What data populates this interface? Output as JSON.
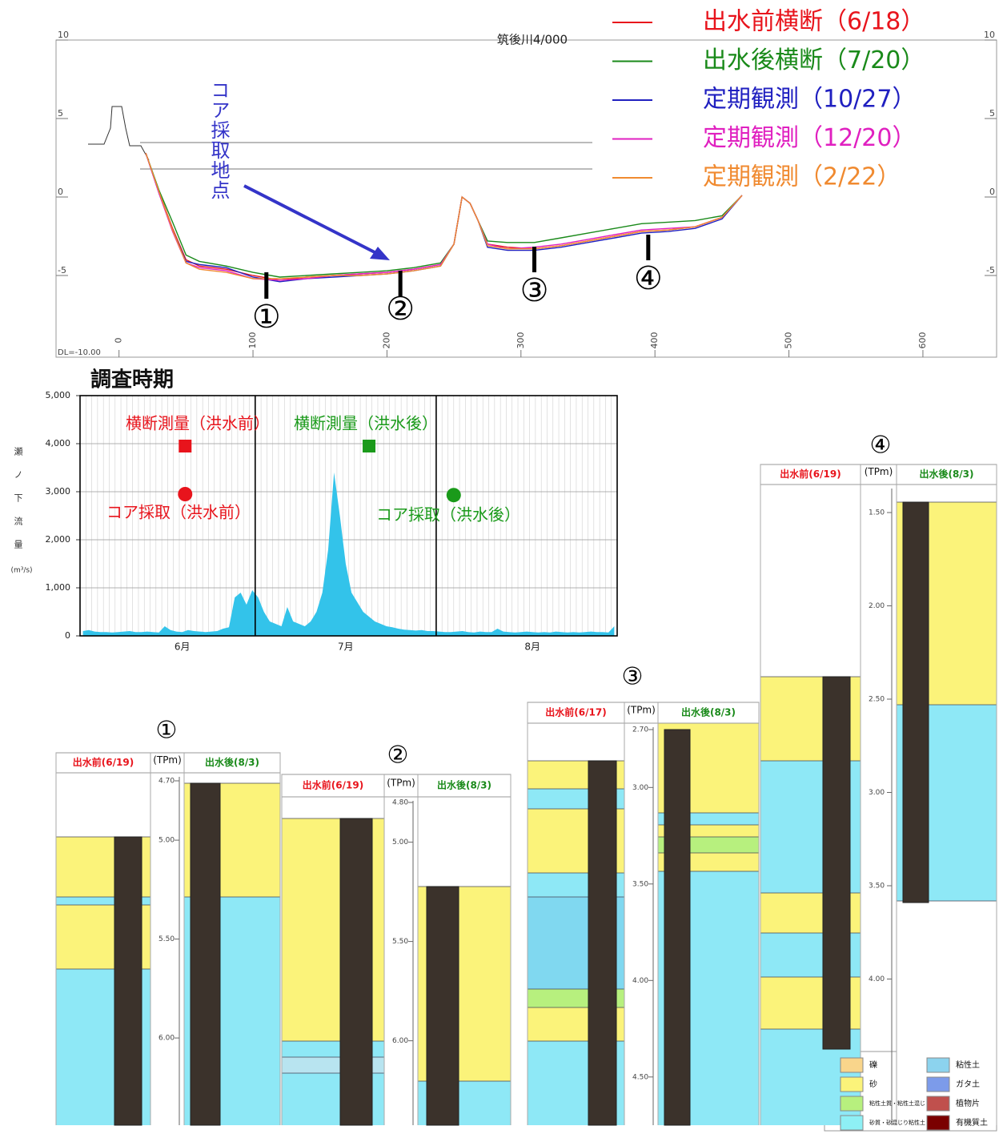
{
  "chart_data": [
    {
      "type": "line",
      "title": "筑後川4/000",
      "annotations": [
        "コア採取地点",
        "DL=-10.00"
      ],
      "x": [
        20,
        30,
        40,
        50,
        60,
        80,
        100,
        120,
        140,
        160,
        180,
        200,
        220,
        240,
        250,
        256,
        262,
        268,
        275,
        290,
        310,
        330,
        350,
        370,
        390,
        410,
        430,
        450,
        465
      ],
      "series": [
        {
          "name": "出水前横断（6/18）",
          "color": "#e8141c",
          "values": [
            2.8,
            0.3,
            -2.0,
            -4.0,
            -4.4,
            -4.6,
            -5.0,
            -5.3,
            -5.1,
            -5.0,
            -4.9,
            -4.8,
            -4.6,
            -4.3,
            -3.0,
            0.0,
            -0.4,
            -1.5,
            -3.0,
            -3.2,
            -3.3,
            -3.1,
            -2.8,
            -2.5,
            -2.2,
            -2.1,
            -1.9,
            -1.3,
            0.1
          ]
        },
        {
          "name": "出水後横断（7/20）",
          "color": "#1a8a1a",
          "values": [
            2.8,
            0.4,
            -1.6,
            -3.7,
            -4.1,
            -4.4,
            -4.8,
            -5.1,
            -5.0,
            -4.9,
            -4.8,
            -4.7,
            -4.5,
            -4.2,
            -3.0,
            0.0,
            -0.4,
            -1.5,
            -2.8,
            -2.9,
            -2.9,
            -2.6,
            -2.3,
            -2.0,
            -1.7,
            -1.6,
            -1.5,
            -1.2,
            0.1
          ]
        },
        {
          "name": "定期観測（10/27）",
          "color": "#2020c0",
          "values": [
            2.8,
            0.2,
            -2.1,
            -4.1,
            -4.3,
            -4.5,
            -5.1,
            -5.4,
            -5.2,
            -5.1,
            -5.0,
            -4.9,
            -4.7,
            -4.4,
            -3.0,
            0.0,
            -0.4,
            -1.5,
            -3.2,
            -3.4,
            -3.4,
            -3.2,
            -2.9,
            -2.6,
            -2.3,
            -2.2,
            -2.0,
            -1.4,
            0.1
          ]
        },
        {
          "name": "定期観測（12/20）",
          "color": "#e020c0",
          "values": [
            2.8,
            0.2,
            -2.2,
            -4.2,
            -4.5,
            -4.7,
            -5.2,
            -5.3,
            -5.2,
            -5.0,
            -4.9,
            -4.8,
            -4.6,
            -4.3,
            -3.0,
            0.0,
            -0.4,
            -1.5,
            -3.0,
            -3.3,
            -3.2,
            -3.0,
            -2.7,
            -2.4,
            -2.1,
            -2.0,
            -1.9,
            -1.3,
            0.1
          ]
        },
        {
          "name": "定期観測（2/22）",
          "color": "#f08a30",
          "values": [
            2.8,
            0.3,
            -2.1,
            -4.2,
            -4.6,
            -4.8,
            -5.2,
            -5.2,
            -5.1,
            -5.0,
            -5.0,
            -4.9,
            -4.7,
            -4.4,
            -3.0,
            0.0,
            -0.4,
            -1.5,
            -3.1,
            -3.3,
            -3.3,
            -3.1,
            -2.8,
            -2.5,
            -2.2,
            -2.1,
            -1.9,
            -1.3,
            0.1
          ]
        }
      ],
      "points": [
        {
          "label": "①",
          "x": 110
        },
        {
          "label": "②",
          "x": 210
        },
        {
          "label": "③",
          "x": 310
        },
        {
          "label": "④",
          "x": 395
        }
      ],
      "xlim": [
        -47,
        655
      ],
      "xticks": [
        0,
        100,
        200,
        300,
        400,
        500,
        600
      ],
      "ylim": [
        -10,
        10
      ],
      "yticks": [
        -5,
        0,
        5,
        10
      ]
    },
    {
      "type": "area",
      "title": "調査時期",
      "ylabel": "瀬ノ下流量",
      "ylabel_unit": "(m³/s)",
      "color": "#33c3ea",
      "categories": [
        null,
        null,
        null,
        null,
        null,
        null,
        null,
        null,
        null,
        null,
        null,
        null,
        null,
        null,
        null,
        null,
        null,
        "6月",
        null,
        null,
        null,
        null,
        null,
        null,
        null,
        null,
        null,
        null,
        null,
        null,
        null,
        null,
        null,
        null,
        null,
        null,
        null,
        null,
        null,
        null,
        null,
        null,
        null,
        null,
        null,
        "7月",
        null,
        null,
        null,
        null,
        null,
        null,
        null,
        null,
        null,
        null,
        null,
        null,
        null,
        null,
        null,
        null,
        null,
        null,
        null,
        null,
        null,
        null,
        null,
        null,
        null,
        null,
        null,
        null,
        null,
        null,
        null,
        "8月",
        null,
        null,
        null,
        null,
        null,
        null,
        null,
        null,
        null,
        null,
        null,
        null,
        null,
        null
      ],
      "values": [
        100,
        120,
        90,
        80,
        80,
        70,
        80,
        90,
        100,
        80,
        80,
        90,
        80,
        70,
        200,
        120,
        90,
        80,
        120,
        100,
        90,
        80,
        90,
        100,
        150,
        180,
        800,
        900,
        650,
        950,
        800,
        500,
        300,
        250,
        200,
        600,
        300,
        250,
        200,
        300,
        500,
        900,
        1800,
        3400,
        2500,
        1500,
        900,
        700,
        500,
        400,
        300,
        250,
        200,
        180,
        150,
        130,
        120,
        110,
        120,
        100,
        100,
        90,
        80,
        80,
        90,
        100,
        80,
        70,
        90,
        80,
        80,
        150,
        90,
        80,
        70,
        80,
        90,
        80,
        70,
        80,
        70,
        90,
        80,
        70,
        80,
        70,
        80,
        90,
        80,
        80,
        70,
        200
      ],
      "events": [
        {
          "name": "横断測量（洪水前）",
          "color": "#e8141c",
          "marker": "square",
          "x": 17.5,
          "value": 3950
        },
        {
          "name": "横断測量（洪水後）",
          "color": "#1a9a1a",
          "marker": "square",
          "x": 49,
          "value": 3950
        },
        {
          "name": "コア採取（洪水前）",
          "color": "#e8141c",
          "marker": "circle",
          "x": 17.5,
          "value": 2950
        },
        {
          "name": "コア採取（洪水後）",
          "color": "#1a9a1a",
          "marker": "circle",
          "x": 63.5,
          "value": 2930
        }
      ],
      "ylim": [
        0,
        5000
      ],
      "yticks": [
        0,
        {
          "value": 1000,
          "label": "1,000"
        },
        {
          "value": 2000,
          "label": "2,000"
        },
        {
          "value": 3000,
          "label": "3,000"
        },
        {
          "value": 4000,
          "label": "4,000"
        },
        {
          "value": 5000,
          "label": "5,000"
        }
      ],
      "grid": true
    }
  ],
  "cores": [
    {
      "label": "①",
      "before": "出水前(6/19)",
      "unit": "(TPm)",
      "after": "出水後(8/3)",
      "ticks": [
        {
          "value": 4.7,
          "label": "4.70"
        },
        {
          "value": 5.0,
          "label": "5.00"
        },
        {
          "value": 5.5,
          "label": "5.50"
        },
        {
          "value": 6.0,
          "label": "6.00"
        }
      ]
    },
    {
      "label": "②",
      "before": "出水前(6/19)",
      "unit": "(TPm)",
      "after": "出水後(8/3)",
      "ticks": [
        {
          "value": 4.8,
          "label": "4.80"
        },
        {
          "value": 5.0,
          "label": "5.00"
        },
        {
          "value": 5.5,
          "label": "5.50"
        },
        {
          "value": 6.0,
          "label": "6.00"
        }
      ]
    },
    {
      "label": "③",
      "before": "出水前(6/17)",
      "unit": "(TPm)",
      "after": "出水後(8/3)",
      "ticks": [
        {
          "value": 2.7,
          "label": "2.70"
        },
        {
          "value": 3.0,
          "label": "3.00"
        },
        {
          "value": 3.5,
          "label": "3.50"
        },
        {
          "value": 4.0,
          "label": "4.00"
        },
        {
          "value": 4.5,
          "label": "4.50"
        }
      ]
    },
    {
      "label": "④",
      "before": "出水前(6/19)",
      "unit": "(TPm)",
      "after": "出水後(8/3)",
      "ticks": [
        {
          "value": 1.5,
          "label": "1.50"
        },
        {
          "value": 2.0,
          "label": "2.00"
        },
        {
          "value": 2.5,
          "label": "2.50"
        },
        {
          "value": 3.0,
          "label": "3.00"
        },
        {
          "value": 3.5,
          "label": "3.50"
        },
        {
          "value": 4.0,
          "label": "4.00"
        }
      ]
    }
  ],
  "soil_legend": [
    {
      "label": "礫",
      "color": "#f9d58b"
    },
    {
      "label": "砂",
      "color": "#fbf37a"
    },
    {
      "label": "粘性土質・粘性土混じり砂",
      "color": "#b7f07e"
    },
    {
      "label": "砂質・砂混じり粘性土",
      "color": "#8ef0f5"
    },
    {
      "label": "粘性土",
      "color": "#8cd3ee"
    },
    {
      "label": "ガタ土",
      "color": "#7c9bea"
    },
    {
      "label": "植物片",
      "color": "#c0504d"
    },
    {
      "label": "有機質土",
      "color": "#7a0000"
    }
  ]
}
